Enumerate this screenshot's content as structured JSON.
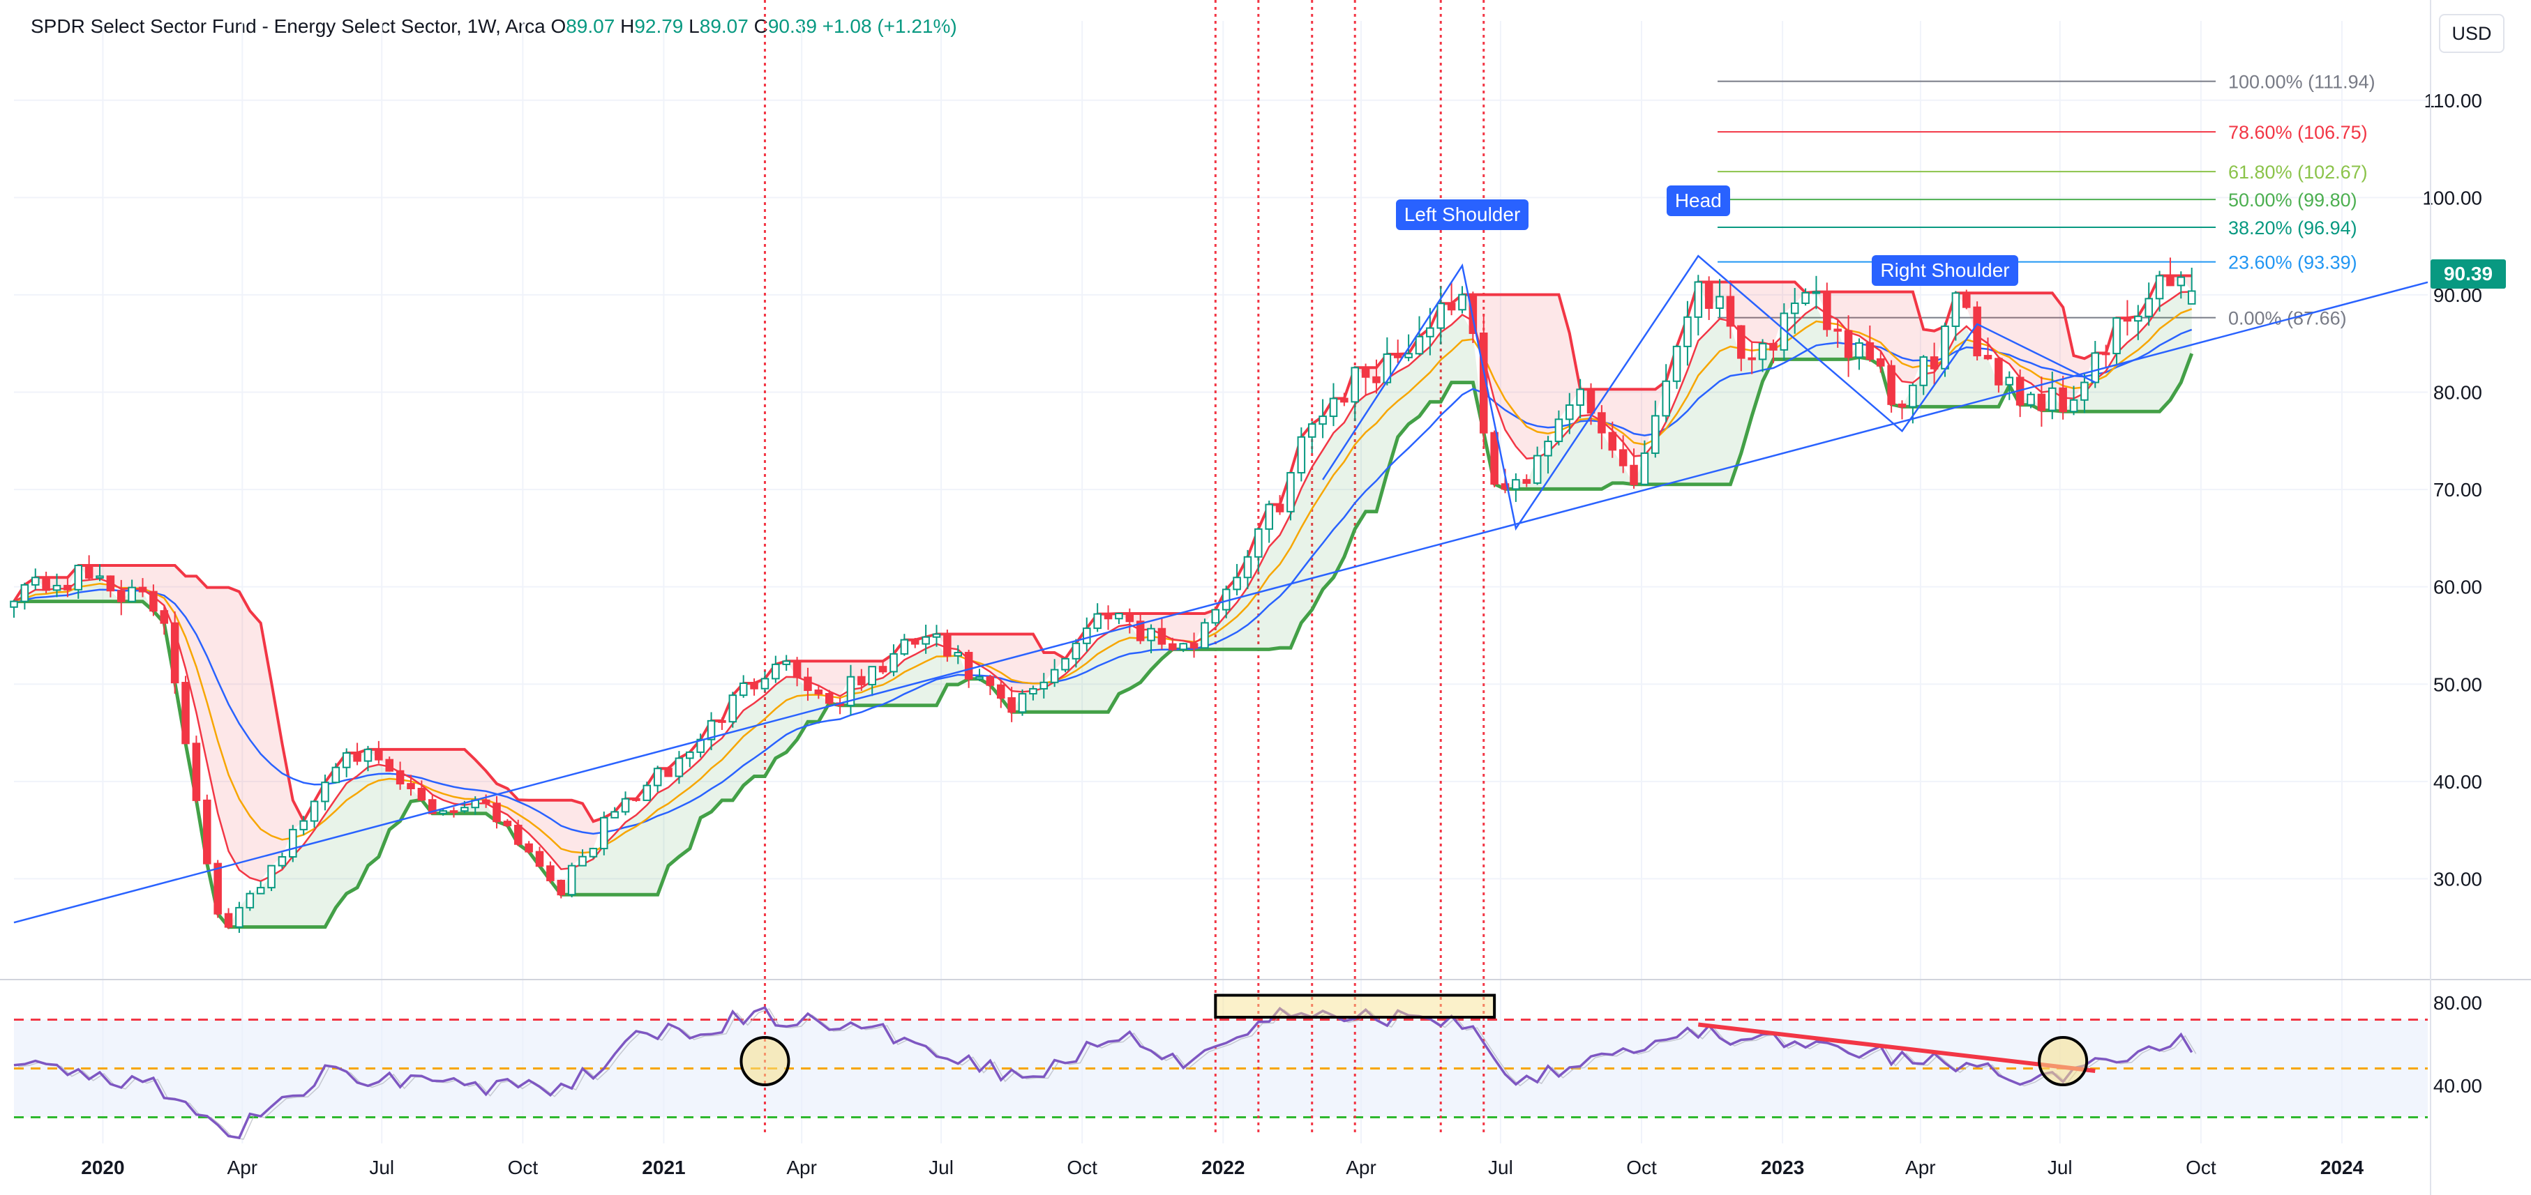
{
  "header": {
    "title": "SPDR Select Sector Fund - Energy Select Sector, 1W, Arca",
    "o_label": "O",
    "o_value": "89.07",
    "h_label": "H",
    "h_value": "92.79",
    "l_label": "L",
    "l_value": "89.07",
    "c_label": "C",
    "c_value": "90.39",
    "change": "+1.08 (+1.21%)"
  },
  "currency_button": "USD",
  "last_price": "90.39",
  "colors": {
    "up": "#089981",
    "down": "#f23645",
    "ema_red": "#f23645",
    "ema_orange": "#f7a600",
    "ema_blue": "#2962ff",
    "rsi_line": "#7e57c2",
    "support_green": "#43a047",
    "resistance_red": "#f23645",
    "annotation": "#2962ff"
  },
  "chart_data": {
    "type": "candlestick",
    "timeframe": "1W",
    "ylim": [
      20,
      116
    ],
    "y_ticks": [
      "110.00",
      "100.00",
      "90.00",
      "80.00",
      "70.00",
      "60.00",
      "50.00",
      "40.00",
      "30.00"
    ],
    "x_ticks": [
      "2020",
      "Apr",
      "Jul",
      "Oct",
      "2021",
      "Apr",
      "Jul",
      "Oct",
      "2022",
      "Apr",
      "Jul",
      "Oct",
      "2023",
      "Apr",
      "Jul",
      "Oct",
      "2024"
    ],
    "x_start": "2019-11-04",
    "x_end": "2024-02-26",
    "swing_points": [
      {
        "date": "2019-11-04",
        "price": 60
      },
      {
        "date": "2019-12-30",
        "price": 61
      },
      {
        "date": "2020-02-10",
        "price": 57
      },
      {
        "date": "2020-03-16",
        "price": 26
      },
      {
        "date": "2020-03-23",
        "price": 25
      },
      {
        "date": "2020-05-11",
        "price": 36
      },
      {
        "date": "2020-06-08",
        "price": 44
      },
      {
        "date": "2020-08-03",
        "price": 37
      },
      {
        "date": "2020-09-07",
        "price": 38
      },
      {
        "date": "2020-10-26",
        "price": 29
      },
      {
        "date": "2020-11-30",
        "price": 37
      },
      {
        "date": "2021-01-11",
        "price": 42
      },
      {
        "date": "2021-03-15",
        "price": 53
      },
      {
        "date": "2021-04-19",
        "price": 48
      },
      {
        "date": "2021-06-21",
        "price": 55
      },
      {
        "date": "2021-08-16",
        "price": 47
      },
      {
        "date": "2021-10-18",
        "price": 58
      },
      {
        "date": "2021-12-06",
        "price": 53
      },
      {
        "date": "2022-01-31",
        "price": 67
      },
      {
        "date": "2022-03-07",
        "price": 79
      },
      {
        "date": "2022-05-02",
        "price": 85
      },
      {
        "date": "2022-06-06",
        "price": 91
      },
      {
        "date": "2022-06-27",
        "price": 70
      },
      {
        "date": "2022-07-11",
        "price": 70
      },
      {
        "date": "2022-08-15",
        "price": 80
      },
      {
        "date": "2022-09-26",
        "price": 71
      },
      {
        "date": "2022-11-07",
        "price": 92
      },
      {
        "date": "2022-12-12",
        "price": 84
      },
      {
        "date": "2023-01-23",
        "price": 89
      },
      {
        "date": "2023-03-20",
        "price": 78
      },
      {
        "date": "2023-04-24",
        "price": 88
      },
      {
        "date": "2023-06-05",
        "price": 80
      },
      {
        "date": "2023-07-03",
        "price": 79
      },
      {
        "date": "2023-08-14",
        "price": 87
      },
      {
        "date": "2023-09-18",
        "price": 92
      },
      {
        "date": "2023-09-25",
        "price": 90.39
      }
    ],
    "last_candle": {
      "open": 89.07,
      "high": 92.79,
      "low": 89.07,
      "close": 90.39
    },
    "fib_retracement": {
      "start_date": "2022-11-07",
      "end_date": "2023-09-25",
      "levels": [
        {
          "label": "100.00% (111.94)",
          "price": 111.94,
          "color": "#787b86"
        },
        {
          "label": "78.60% (106.75)",
          "price": 106.75,
          "color": "#f23645"
        },
        {
          "label": "61.80% (102.67)",
          "price": 102.67,
          "color": "#8bc34a"
        },
        {
          "label": "50.00% (99.80)",
          "price": 99.8,
          "color": "#4caf50"
        },
        {
          "label": "38.20% (96.94)",
          "price": 96.94,
          "color": "#089981"
        },
        {
          "label": "23.60% (93.39)",
          "price": 93.39,
          "color": "#2196f3"
        },
        {
          "label": "0.00% (87.66)",
          "price": 87.66,
          "color": "#787b86"
        }
      ]
    },
    "trendline": {
      "from": {
        "date": "2019-11-04",
        "price": 25.5
      },
      "to": {
        "date": "2024-02-26",
        "price": 91.3
      }
    },
    "annotations": [
      {
        "text": "Left Shoulder",
        "date": "2022-06-06"
      },
      {
        "text": "Head",
        "date": "2022-11-07"
      },
      {
        "text": "Right Shoulder",
        "date": "2023-04-17"
      }
    ],
    "vertical_markers": [
      "2021-03-08",
      "2021-12-27",
      "2022-01-24",
      "2022-02-28",
      "2022-03-28",
      "2022-05-23",
      "2022-06-20"
    ],
    "rsi": {
      "ylim": [
        25,
        85
      ],
      "y_ticks": [
        "80.00",
        "40.00"
      ],
      "levels": [
        70,
        50,
        30
      ],
      "points": [
        {
          "date": "2019-11-04",
          "value": 50
        },
        {
          "date": "2020-01-27",
          "value": 45
        },
        {
          "date": "2020-03-23",
          "value": 22
        },
        {
          "date": "2020-05-25",
          "value": 48
        },
        {
          "date": "2020-08-03",
          "value": 45
        },
        {
          "date": "2020-10-26",
          "value": 40
        },
        {
          "date": "2020-12-14",
          "value": 62
        },
        {
          "date": "2021-03-08",
          "value": 72
        },
        {
          "date": "2021-06-14",
          "value": 62
        },
        {
          "date": "2021-08-23",
          "value": 46
        },
        {
          "date": "2021-11-01",
          "value": 65
        },
        {
          "date": "2021-12-06",
          "value": 52
        },
        {
          "date": "2022-01-31",
          "value": 72
        },
        {
          "date": "2022-06-06",
          "value": 70
        },
        {
          "date": "2022-07-11",
          "value": 45
        },
        {
          "date": "2022-08-29",
          "value": 55
        },
        {
          "date": "2022-11-07",
          "value": 65
        },
        {
          "date": "2023-01-30",
          "value": 58
        },
        {
          "date": "2023-04-17",
          "value": 52
        },
        {
          "date": "2023-06-26",
          "value": 45
        },
        {
          "date": "2023-07-31",
          "value": 55
        },
        {
          "date": "2023-09-18",
          "value": 60
        },
        {
          "date": "2023-09-25",
          "value": 59
        }
      ],
      "divergence_line": {
        "from": {
          "date": "2022-11-07",
          "value": 68
        },
        "to": {
          "date": "2023-07-24",
          "value": 49
        }
      },
      "highlight_circles": [
        "2021-03-08",
        "2023-07-03"
      ],
      "highlight_box": {
        "from": "2021-12-27",
        "to": "2022-06-27"
      }
    }
  }
}
